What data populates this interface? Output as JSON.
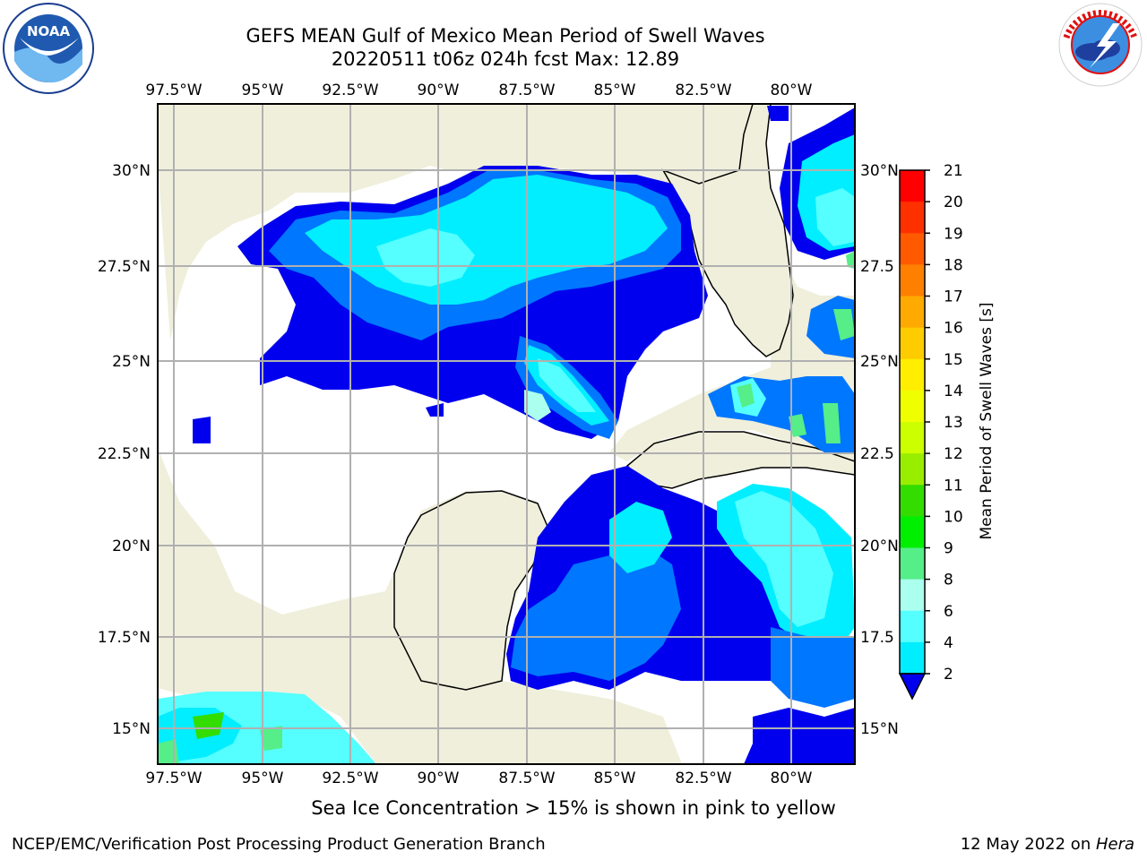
{
  "title": {
    "line1": "GEFS MEAN Gulf of Mexico Mean Period of Swell Waves",
    "line2": "20220511 t06z 024h fcst   Max: 12.89"
  },
  "logos": {
    "left": "noaa-logo",
    "right": "national-weather-service-logo"
  },
  "map": {
    "lon_labels": [
      "97.5°W",
      "95°W",
      "92.5°W",
      "90°W",
      "87.5°W",
      "85°W",
      "82.5°W",
      "80°W"
    ],
    "lat_labels_left": [
      "30°N",
      "27.5°N",
      "25°N",
      "22.5°N",
      "20°N",
      "17.5°N",
      "15°N"
    ],
    "lat_labels_right": [
      "30°N",
      "27.5",
      "25°N",
      "22.5",
      "20°N",
      "17.5",
      "15°N"
    ],
    "land_color": "#efefdc",
    "ocean_color": "#ffffff",
    "grid": true
  },
  "colorbar": {
    "label": "Mean Period of Swell Waves [s]",
    "ticks": [
      "21",
      "20",
      "19",
      "18",
      "17",
      "16",
      "15",
      "14",
      "13",
      "12",
      "11",
      "10",
      "9",
      "8",
      "6",
      "4",
      "2"
    ],
    "colors": [
      "#ff0000",
      "#ff3000",
      "#ff5a00",
      "#ff8000",
      "#ffaa00",
      "#ffcc00",
      "#ffee00",
      "#f0ff00",
      "#ccff00",
      "#99ee00",
      "#33dd00",
      "#00ee00",
      "#55ee88",
      "#aaffee",
      "#55ffff",
      "#00eeff",
      "#0077ff",
      "#0000ee"
    ]
  },
  "footer": {
    "note": "Sea Ice Concentration > 15% is shown in pink to yellow",
    "left": "NCEP/EMC/Verification Post Processing Product Generation Branch",
    "right_date": "12 May 2022 on ",
    "right_host": "Hera"
  }
}
